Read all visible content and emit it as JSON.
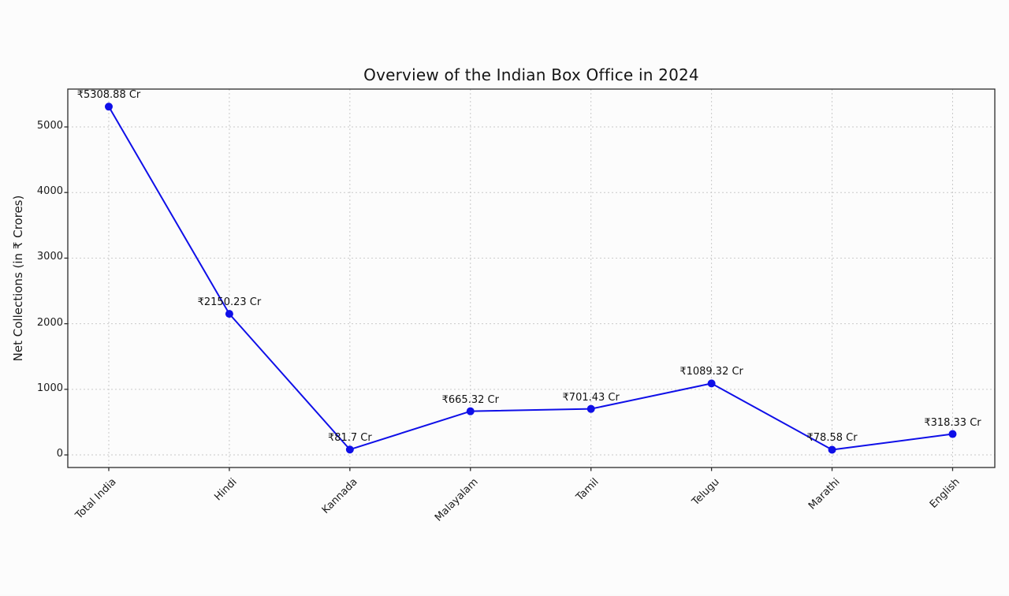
{
  "page": {
    "background": "#fcfcfc"
  },
  "chart_data": {
    "type": "line",
    "title": "Overview of the Indian Box Office in 2024",
    "xlabel": "",
    "ylabel": "Net Collections (in ₹ Crores)",
    "categories": [
      "Total India",
      "Hindi",
      "Kannada",
      "Malayalam",
      "Tamil",
      "Telugu",
      "Marathi",
      "English"
    ],
    "values": [
      5308.88,
      2150.23,
      81.7,
      665.32,
      701.43,
      1089.32,
      78.58,
      318.33
    ],
    "point_labels": [
      "₹5308.88 Cr",
      "₹2150.23 Cr",
      "₹81.7 Cr",
      "₹665.32 Cr",
      "₹701.43 Cr",
      "₹1089.32 Cr",
      "₹78.58 Cr",
      "₹318.33 Cr"
    ],
    "yticks": [
      0,
      1000,
      2000,
      3000,
      4000,
      5000
    ],
    "ylim": [
      -192,
      5577
    ],
    "xlim": [
      -0.34,
      7.35
    ],
    "grid": true,
    "grid_style": "dashed",
    "legend": "none",
    "line_color": "#0f0fe8",
    "marker_color": "#0f0fe8",
    "grid_color": "#c9c9c9",
    "frame_color": "#2b2b2b",
    "text_color": "#1a1a1a"
  }
}
